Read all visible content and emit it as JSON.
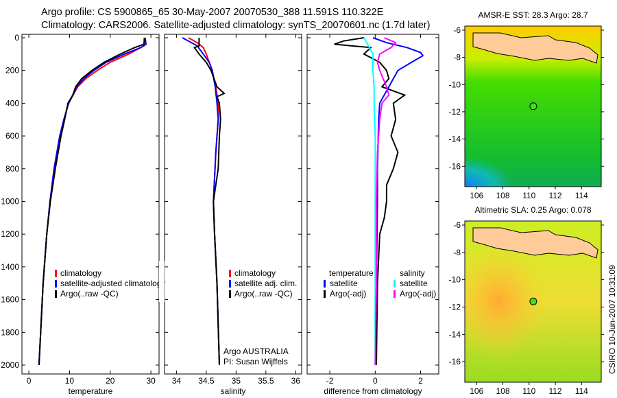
{
  "header": {
    "line1": "Argo profile: CS 5900865_65 30-May-2007 20070530_388 11.591S 110.322E",
    "line2": "Climatology: CARS2006. Satellite-adjusted climatology: synTS_20070601.nc (1.7d later)"
  },
  "side_stamp": "CSIRO 10-Jun-2007 10:31:09",
  "colors": {
    "climatology": "#ff0000",
    "satellite": "#0000ff",
    "argo": "#000000",
    "sal_satellite": "#00ffff",
    "sal_argo": "#ff00ff",
    "land": "#ffcc99"
  },
  "chart_data": [
    {
      "type": "line",
      "xlabel": "temperature",
      "ylabel": "",
      "xticks": [
        "0",
        "10",
        "20",
        "30"
      ],
      "xtick_values": [
        0,
        10,
        20,
        30
      ],
      "xlim": [
        -1.7,
        32
      ],
      "ylim": [
        2000,
        0
      ],
      "yticks": [
        "0",
        "200",
        "400",
        "600",
        "800",
        "1000",
        "1200",
        "1400",
        "1600",
        "1800",
        "2000"
      ],
      "ytick_values": [
        0,
        200,
        400,
        600,
        800,
        1000,
        1200,
        1400,
        1600,
        1800,
        2000
      ],
      "legend": [
        "climatology",
        "satellite-adjusted climatology",
        "Argo(..raw -QC)"
      ],
      "series": [
        {
          "name": "climatology",
          "color": "#ff0000",
          "depth": [
            0,
            50,
            100,
            150,
            200,
            250,
            300,
            400,
            500,
            600,
            800,
            1000,
            1200,
            1500,
            2000
          ],
          "values": [
            28.5,
            28.3,
            24.5,
            20,
            16.8,
            14,
            12,
            9.8,
            8.6,
            7.6,
            6.2,
            5.2,
            4.4,
            3.5,
            2.5
          ]
        },
        {
          "name": "satellite-adjusted climatology",
          "color": "#0000ff",
          "depth": [
            0,
            40,
            60,
            100,
            150,
            200,
            250,
            300,
            400,
            500,
            600,
            800,
            1000,
            1200,
            1500,
            2000
          ],
          "values": [
            28.6,
            28.8,
            27.5,
            23.5,
            19,
            16,
            13.5,
            11.8,
            9.8,
            8.6,
            7.6,
            6.2,
            5.2,
            4.4,
            3.5,
            2.5
          ]
        },
        {
          "name": "Argo(..raw -QC)",
          "color": "#000000",
          "depth": [
            0,
            40,
            60,
            100,
            150,
            200,
            250,
            300,
            350,
            400,
            500,
            600,
            800,
            1000,
            1200,
            1500,
            2000
          ],
          "values": [
            28.4,
            28.3,
            26,
            22.5,
            18.5,
            15.5,
            13,
            11.5,
            10.8,
            9.6,
            8.8,
            7.9,
            6.5,
            5.3,
            4.4,
            3.5,
            2.5
          ]
        }
      ],
      "annotations": []
    },
    {
      "type": "line",
      "xlabel": "salinity",
      "xticks": [
        "34",
        "34.5",
        "35",
        "35.5",
        "36"
      ],
      "xtick_values": [
        34,
        34.5,
        35,
        35.5,
        36
      ],
      "xlim": [
        33.8,
        36.1
      ],
      "ylim": [
        2000,
        0
      ],
      "legend": [
        "climatology",
        "satellite adj. clim.",
        "Argo(..raw -QC)"
      ],
      "series": [
        {
          "name": "climatology",
          "color": "#ff0000",
          "depth": [
            0,
            30,
            60,
            100,
            150,
            200,
            300,
            400,
            500,
            700,
            1000,
            1200,
            1500,
            2000
          ],
          "values": [
            34.2,
            34.35,
            34.45,
            34.5,
            34.55,
            34.6,
            34.66,
            34.7,
            34.7,
            34.66,
            34.62,
            34.64,
            34.68,
            34.72
          ]
        },
        {
          "name": "satellite adj. clim.",
          "color": "#0000ff",
          "depth": [
            0,
            20,
            50,
            100,
            150,
            200,
            300,
            400,
            500,
            700,
            1000,
            1200,
            1500,
            2000
          ],
          "values": [
            34.1,
            34.2,
            34.35,
            34.45,
            34.55,
            34.6,
            34.65,
            34.68,
            34.7,
            34.66,
            34.62,
            34.64,
            34.68,
            34.72
          ]
        },
        {
          "name": "Argo(..raw -QC)",
          "color": "#000000",
          "depth": [
            0,
            50,
            60,
            100,
            150,
            200,
            300,
            340,
            360,
            400,
            500,
            600,
            800,
            1000,
            1200,
            1500,
            2000
          ],
          "values": [
            34.38,
            34.38,
            34.3,
            34.38,
            34.5,
            34.58,
            34.68,
            34.8,
            34.68,
            34.72,
            34.74,
            34.72,
            34.7,
            34.62,
            34.64,
            34.68,
            34.72
          ]
        }
      ],
      "annotations": [
        "Argo AUSTRALIA",
        "PI: Susan Wijffels"
      ]
    },
    {
      "type": "line",
      "xlabel": "difference from climatology",
      "xticks": [
        "-2",
        "0",
        "2"
      ],
      "xtick_values": [
        -2,
        0,
        2
      ],
      "xlim": [
        -3,
        2.8
      ],
      "ylim": [
        2000,
        0
      ],
      "legend_headers": [
        "temperature",
        "salinity"
      ],
      "legend": [
        "satellite",
        "Argo(-adj)",
        "satellite",
        "Argo(-adj)"
      ],
      "series": [
        {
          "name": "temperature satellite",
          "color": "#0000ff",
          "depth": [
            0,
            30,
            60,
            90,
            110,
            150,
            200,
            300,
            400,
            500,
            800,
            1000,
            1500,
            2000
          ],
          "values": [
            -0.1,
            0.5,
            1.4,
            2.0,
            2.1,
            1.6,
            1.0,
            0.6,
            0.2,
            0.15,
            0.1,
            0.1,
            0.05,
            0.05
          ]
        },
        {
          "name": "temperature Argo(-adj)",
          "color": "#000000",
          "depth": [
            0,
            20,
            40,
            60,
            100,
            150,
            200,
            250,
            300,
            350,
            400,
            500,
            600,
            700,
            800,
            900,
            1000,
            1100,
            1200,
            1500,
            2000
          ],
          "values": [
            -0.5,
            -1.4,
            -1.8,
            -0.2,
            -0.5,
            0.2,
            0.5,
            0.6,
            0.3,
            1.3,
            0.8,
            0.9,
            0.7,
            1.0,
            0.8,
            0.5,
            0.5,
            0.4,
            0.2,
            0.1,
            0.05
          ]
        },
        {
          "name": "salinity satellite",
          "color": "#00ffff",
          "depth": [
            0,
            50,
            100,
            200,
            300,
            400,
            600,
            1000,
            1500,
            2000
          ],
          "values": [
            -0.5,
            -0.3,
            -0.1,
            -0.1,
            -0.05,
            -0.05,
            0,
            0,
            0,
            0
          ]
        },
        {
          "name": "salinity Argo(-adj)",
          "color": "#ff00ff",
          "depth": [
            0,
            30,
            60,
            100,
            150,
            200,
            300,
            350,
            400,
            500,
            700,
            1000,
            1500,
            2000
          ],
          "values": [
            0.4,
            0.9,
            0.7,
            0.2,
            0.1,
            0.2,
            0.5,
            0.6,
            0.3,
            0.2,
            0.1,
            0.05,
            0.05,
            0
          ]
        }
      ]
    },
    {
      "type": "heatmap",
      "title": "AMSR-E SST: 28.3 Argo: 28.7",
      "xticks": [
        "106",
        "108",
        "110",
        "112",
        "114"
      ],
      "xtick_values": [
        106,
        108,
        110,
        112,
        114
      ],
      "yticks": [
        "-6",
        "-8",
        "-10",
        "-12",
        "-14",
        "-16"
      ],
      "ytick_values": [
        -6,
        -8,
        -10,
        -12,
        -14,
        -16
      ],
      "xlim": [
        105.1,
        115.5
      ],
      "ylim": [
        -17.5,
        -5.7
      ],
      "marker": {
        "lon": 110.32,
        "lat": -11.59
      }
    },
    {
      "type": "heatmap",
      "title": "Altimetric SLA: 0.25 Argo: 0.078",
      "xticks": [
        "106",
        "108",
        "110",
        "112",
        "114"
      ],
      "xtick_values": [
        106,
        108,
        110,
        112,
        114
      ],
      "yticks": [
        "-6",
        "-8",
        "-10",
        "-12",
        "-14",
        "-16"
      ],
      "ytick_values": [
        -6,
        -8,
        -10,
        -12,
        -14,
        -16
      ],
      "xlim": [
        105.1,
        115.5
      ],
      "ylim": [
        -17.5,
        -5.7
      ],
      "marker": {
        "lon": 110.32,
        "lat": -11.59
      }
    }
  ]
}
